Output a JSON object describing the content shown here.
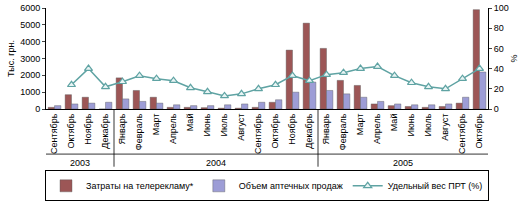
{
  "chart_data": {
    "type": "bar",
    "categories": [
      "Сентябрь",
      "Октябрь",
      "Ноябрь",
      "Декабрь",
      "Январь",
      "Февраль",
      "Март",
      "Апрель",
      "Май",
      "Июнь",
      "Июль",
      "Август",
      "Сентябрь",
      "Октябрь",
      "Ноябрь",
      "Декабрь",
      "Январь",
      "Февраль",
      "Март",
      "Апрель",
      "Май",
      "Июнь",
      "Июль",
      "Август",
      "Сентябрь",
      "Октябрь"
    ],
    "years": [
      "2003",
      "2003",
      "2003",
      "2003",
      "2004",
      "2004",
      "2004",
      "2004",
      "2004",
      "2004",
      "2004",
      "2004",
      "2004",
      "2004",
      "2004",
      "2004",
      "2005",
      "2005",
      "2005",
      "2005",
      "2005",
      "2005",
      "2005",
      "2005",
      "2005",
      "2005"
    ],
    "y_label": "Тыс. грн.",
    "y2_label": "%",
    "ylim": [
      0,
      6000
    ],
    "yticks": [
      0,
      1000,
      2000,
      3000,
      4000,
      5000,
      6000
    ],
    "y2lim": [
      0,
      100
    ],
    "y2ticks": [
      0,
      20,
      40,
      60,
      80,
      100
    ],
    "grid": false,
    "legend": "bottom",
    "series": [
      {
        "name": "Затраты на телерекламу*",
        "type": "bar",
        "color": "#9c5656",
        "values": [
          100,
          850,
          700,
          0,
          1850,
          1100,
          700,
          100,
          100,
          80,
          50,
          50,
          100,
          400,
          3500,
          5100,
          3600,
          1700,
          1400,
          300,
          200,
          150,
          100,
          150,
          350,
          5900
        ]
      },
      {
        "name": "Объем аптечных продаж",
        "type": "bar",
        "color": "#9d9dd6",
        "values": [
          200,
          300,
          350,
          400,
          600,
          450,
          350,
          250,
          200,
          200,
          250,
          300,
          400,
          550,
          1000,
          1600,
          1100,
          900,
          700,
          450,
          300,
          250,
          250,
          300,
          700,
          2200
        ]
      },
      {
        "name": "Удельный вес ПРТ (%)",
        "type": "line",
        "axis": "y2",
        "color": "#5fa3a3",
        "marker": "triangle",
        "values": [
          null,
          24,
          40,
          22,
          27,
          33,
          30,
          28,
          21,
          17,
          13,
          15,
          20,
          24,
          33,
          28,
          34,
          36,
          40,
          42,
          33,
          26,
          22,
          20,
          30,
          40
        ]
      }
    ]
  }
}
